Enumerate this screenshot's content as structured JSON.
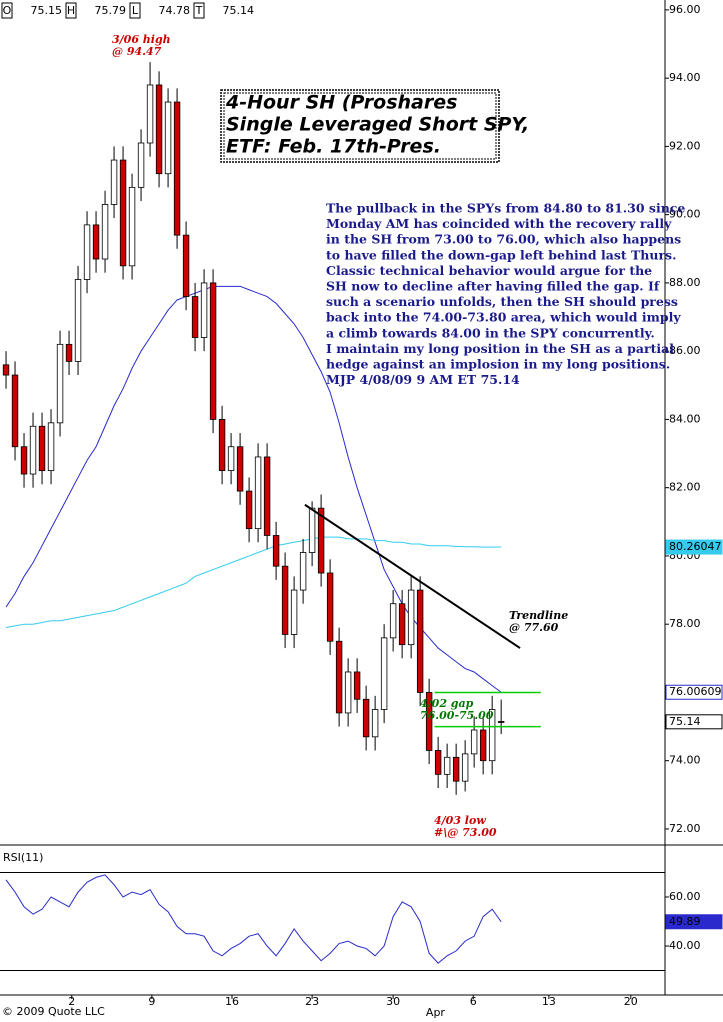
{
  "chart_data": {
    "type": "candlestick",
    "header": [
      {
        "label": "O",
        "value": "75.15"
      },
      {
        "label": "H",
        "value": "75.79"
      },
      {
        "label": "L",
        "value": "74.78"
      },
      {
        "label": "T",
        "value": "75.14"
      }
    ],
    "open": [
      85.6,
      85.3,
      83.2,
      82.4,
      83.8,
      82.5,
      83.9,
      86.2,
      85.7,
      88.1,
      89.7,
      88.7,
      90.3,
      91.6,
      88.5,
      90.8,
      92.1,
      93.8,
      91.2,
      93.3,
      89.4,
      87.6,
      86.4,
      88.0,
      84.0,
      82.5,
      83.2,
      81.9,
      80.8,
      82.9,
      80.6,
      79.7,
      77.7,
      79.0,
      80.1,
      81.4,
      79.5,
      77.5,
      75.4,
      76.6,
      75.8,
      74.7,
      75.5,
      77.6,
      78.6,
      77.4,
      79.0,
      76.0,
      74.3,
      73.6,
      74.1,
      73.4,
      74.2,
      74.9,
      74.0,
      75.15
    ],
    "high": [
      86.0,
      85.7,
      83.6,
      84.2,
      84.2,
      84.3,
      86.6,
      86.6,
      88.5,
      90.1,
      90.1,
      90.7,
      92.0,
      92.0,
      91.2,
      92.5,
      94.47,
      94.2,
      93.7,
      93.7,
      89.8,
      88.0,
      88.4,
      88.4,
      84.4,
      83.6,
      83.6,
      82.3,
      83.3,
      83.3,
      81.0,
      80.1,
      79.4,
      80.5,
      81.6,
      81.8,
      79.9,
      77.9,
      77.0,
      77.0,
      76.2,
      75.9,
      78.0,
      79.0,
      79.0,
      79.4,
      79.4,
      76.4,
      74.7,
      74.5,
      74.5,
      74.6,
      75.3,
      75.3,
      75.9,
      75.79
    ],
    "low": [
      84.9,
      82.8,
      82.0,
      82.0,
      82.1,
      82.1,
      83.5,
      85.3,
      85.3,
      87.7,
      88.3,
      88.3,
      89.9,
      88.1,
      88.1,
      90.4,
      91.7,
      90.8,
      90.8,
      89.0,
      87.2,
      86.0,
      86.0,
      83.6,
      82.1,
      82.1,
      81.5,
      80.4,
      80.4,
      80.2,
      79.3,
      77.3,
      77.3,
      78.6,
      79.7,
      79.1,
      77.1,
      75.0,
      75.0,
      75.4,
      74.3,
      74.3,
      75.1,
      77.2,
      77.0,
      77.0,
      75.6,
      73.9,
      73.2,
      73.2,
      73.0,
      73.1,
      73.8,
      73.6,
      73.6,
      74.78
    ],
    "close": [
      85.3,
      83.2,
      82.4,
      83.8,
      82.5,
      83.9,
      86.2,
      85.7,
      88.1,
      89.7,
      88.7,
      90.3,
      91.6,
      88.5,
      90.8,
      92.1,
      93.8,
      91.2,
      93.3,
      89.4,
      87.6,
      86.4,
      88.0,
      84.0,
      82.5,
      83.2,
      81.9,
      80.8,
      82.9,
      80.6,
      79.7,
      77.7,
      79.0,
      80.1,
      81.4,
      79.5,
      77.5,
      75.4,
      76.6,
      75.8,
      74.7,
      75.5,
      77.6,
      78.6,
      77.4,
      79.0,
      76.0,
      74.3,
      73.6,
      74.1,
      73.4,
      74.2,
      74.9,
      74.0,
      75.5,
      75.14
    ],
    "up_color": "#ffffff",
    "down_color": "#cc0000",
    "series": [
      {
        "color": "#2a2acc",
        "values": [
          78.5,
          78.9,
          79.4,
          79.8,
          80.3,
          80.8,
          81.3,
          81.8,
          82.3,
          82.8,
          83.2,
          83.8,
          84.4,
          84.9,
          85.5,
          86.0,
          86.4,
          86.8,
          87.2,
          87.5,
          87.6,
          87.7,
          87.8,
          87.9,
          87.9,
          87.9,
          87.9,
          87.8,
          87.7,
          87.6,
          87.4,
          87.1,
          86.8,
          86.4,
          85.9,
          85.4,
          84.8,
          83.9,
          82.9,
          82.0,
          81.2,
          80.4,
          79.6,
          79.1,
          78.6,
          78.2,
          77.9,
          77.6,
          77.3,
          77.1,
          76.9,
          76.7,
          76.6,
          76.4,
          76.2,
          76.00609
        ]
      },
      {
        "color": "#33ccee",
        "values": [
          77.9,
          77.95,
          78.0,
          78.0,
          78.05,
          78.1,
          78.1,
          78.15,
          78.2,
          78.25,
          78.3,
          78.35,
          78.4,
          78.5,
          78.6,
          78.7,
          78.8,
          78.9,
          79.0,
          79.1,
          79.2,
          79.4,
          79.5,
          79.6,
          79.7,
          79.8,
          79.9,
          80.0,
          80.1,
          80.2,
          80.3,
          80.35,
          80.4,
          80.45,
          80.5,
          80.55,
          80.55,
          80.55,
          80.5,
          80.5,
          80.5,
          80.45,
          80.45,
          80.4,
          80.4,
          80.35,
          80.35,
          80.3,
          80.3,
          80.3,
          80.28,
          80.27,
          80.27,
          80.26,
          80.26,
          80.26047
        ]
      }
    ],
    "xlim": [
      -0.67,
      73.2
    ],
    "xticks": [
      {
        "value": 7.3,
        "label": "2"
      },
      {
        "value": 16.2,
        "label": "9"
      },
      {
        "value": 25.1,
        "label": "16"
      },
      {
        "value": 34.0,
        "label": "23"
      },
      {
        "value": 43.0,
        "label": "30"
      },
      {
        "value": 51.9,
        "label": "6"
      },
      {
        "value": 60.3,
        "label": "13"
      },
      {
        "value": 69.4,
        "label": "20"
      }
    ],
    "month_labels": [
      {
        "value": 47.7,
        "label": "Apr"
      }
    ],
    "ylim": [
      71.53,
      96.29
    ],
    "yticks": [
      {
        "value": 72,
        "label": "72.00"
      },
      {
        "value": 74,
        "label": "74.00"
      },
      {
        "value": 76,
        "label": "76.00"
      },
      {
        "value": 78,
        "label": "78.00"
      },
      {
        "value": 80,
        "label": "80.00"
      },
      {
        "value": 82,
        "label": "82.00"
      },
      {
        "value": 84,
        "label": "84.00"
      },
      {
        "value": 86,
        "label": "86.00"
      },
      {
        "value": 88,
        "label": "88.00"
      },
      {
        "value": 90,
        "label": "90.00"
      },
      {
        "value": 92,
        "label": "92.00"
      },
      {
        "value": 94,
        "label": "94.00"
      },
      {
        "value": 96,
        "label": "96.00"
      }
    ],
    "trendline": {
      "x": [
        33.2,
        57.1
      ],
      "y": [
        81.5,
        77.3
      ],
      "color": "#000000"
    },
    "gap_lines": {
      "x": [
        47.6,
        59.4
      ],
      "y": [
        76.0,
        75.0
      ],
      "color": "#00cc00"
    },
    "title": [
      "4-Hour SH (Proshares",
      "Single Leveraged Short SPY,",
      "ETF: Feb. 17th-Pres."
    ],
    "commentary": [
      "The pullback in the SPYs from 84.80 to 81.30 since",
      "Monday AM has coincided with the recovery rally",
      "in the SH from 73.00 to 76.00, which also happens",
      "to have filled the down-gap left behind last Thurs.",
      "Classic technical behavior would argue for the",
      "SH now to decline after having filled the gap. If",
      "such a scenario unfolds, then the SH should press",
      "back into the 74.00-73.80 area, which would imply",
      "a climb towards 84.00 in the SPY concurrently.",
      "I maintain my long position in the SH as a partial",
      "hedge against an implosion in my long positions.",
      "MJP  4/08/09  9 AM ET  75.14"
    ],
    "annotations": [
      {
        "text": [
          "3/06 high",
          "@ 94.47"
        ],
        "color": "#cc0000"
      },
      {
        "text": [
          "Trendline",
          "@ 77.60"
        ],
        "color": "#000000"
      },
      {
        "text": [
          "4/02 gap",
          "76.00-75.00"
        ],
        "color": "#007700"
      },
      {
        "text": [
          "4/03 low",
          "#\\@ 73.00"
        ],
        "color": "#cc0000"
      }
    ],
    "rsi": {
      "label": "RSI(11)",
      "color": "#2a2acc",
      "values": [
        67,
        62,
        56,
        53,
        55,
        60,
        58,
        56,
        62,
        66,
        68,
        69,
        65,
        60,
        62,
        61,
        63,
        57,
        54,
        48,
        45,
        45,
        44,
        38,
        36,
        39,
        41,
        44,
        45,
        40,
        36,
        41,
        47,
        42,
        38,
        34,
        37,
        41,
        42,
        40,
        39,
        36,
        40,
        52,
        58,
        56,
        50,
        37,
        33,
        36,
        38,
        42,
        44,
        52,
        55,
        49.89
      ],
      "ylim": [
        20,
        80
      ],
      "yticks": [
        {
          "value": 60,
          "label": "60.00"
        },
        {
          "value": 40,
          "label": "40.00"
        }
      ],
      "levels": [
        70,
        30
      ]
    },
    "copyright": "© 2009 Quote LLC"
  }
}
